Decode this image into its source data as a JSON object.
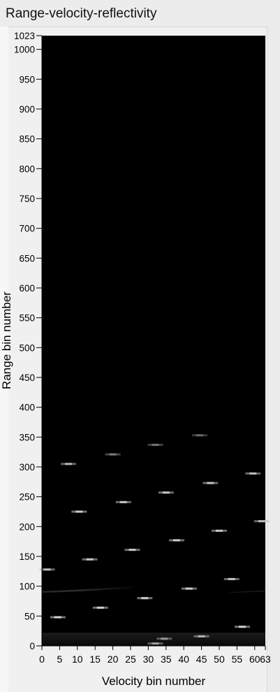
{
  "panel": {
    "title": "Range-velocity-reflectivity"
  },
  "chart_data": {
    "type": "heatmap",
    "title": "",
    "xlabel": "Velocity bin number",
    "ylabel": "Range bin number",
    "xlim": [
      0,
      63
    ],
    "ylim": [
      0,
      1023
    ],
    "x_ticks": [
      0,
      5,
      10,
      15,
      20,
      25,
      30,
      35,
      40,
      45,
      50,
      55,
      60,
      63
    ],
    "y_ticks": [
      0,
      50,
      100,
      150,
      200,
      250,
      300,
      350,
      400,
      450,
      500,
      550,
      600,
      650,
      700,
      750,
      800,
      850,
      900,
      950,
      1000,
      1023
    ],
    "colormap": [
      "#000000",
      "#ffffff"
    ],
    "background_color": "#000000",
    "grid": false,
    "targets": [
      {
        "velocity_bin": 4.5,
        "range_bin": 48,
        "intensity": 0.85
      },
      {
        "velocity_bin": 16.5,
        "range_bin": 64,
        "intensity": 0.8
      },
      {
        "velocity_bin": 29,
        "range_bin": 80,
        "intensity": 0.8
      },
      {
        "velocity_bin": 41.5,
        "range_bin": 96,
        "intensity": 0.8
      },
      {
        "velocity_bin": 53.5,
        "range_bin": 112,
        "intensity": 0.75
      },
      {
        "velocity_bin": 1.5,
        "range_bin": 128,
        "intensity": 0.7
      },
      {
        "velocity_bin": 13.5,
        "range_bin": 145,
        "intensity": 0.75
      },
      {
        "velocity_bin": 25.5,
        "range_bin": 161,
        "intensity": 0.75
      },
      {
        "velocity_bin": 38,
        "range_bin": 177,
        "intensity": 0.8
      },
      {
        "velocity_bin": 50,
        "range_bin": 193,
        "intensity": 0.75
      },
      {
        "velocity_bin": 62,
        "range_bin": 209,
        "intensity": 0.7
      },
      {
        "velocity_bin": 10.5,
        "range_bin": 225,
        "intensity": 0.8
      },
      {
        "velocity_bin": 23,
        "range_bin": 241,
        "intensity": 0.75
      },
      {
        "velocity_bin": 35,
        "range_bin": 257,
        "intensity": 0.75
      },
      {
        "velocity_bin": 47.5,
        "range_bin": 273,
        "intensity": 0.75
      },
      {
        "velocity_bin": 59.5,
        "range_bin": 289,
        "intensity": 0.7
      },
      {
        "velocity_bin": 7.5,
        "range_bin": 305,
        "intensity": 0.65
      },
      {
        "velocity_bin": 20,
        "range_bin": 321,
        "intensity": 0.35
      },
      {
        "velocity_bin": 32,
        "range_bin": 337,
        "intensity": 0.3
      },
      {
        "velocity_bin": 44.5,
        "range_bin": 353,
        "intensity": 0.25
      },
      {
        "velocity_bin": 45,
        "range_bin": 16,
        "intensity": 0.65
      },
      {
        "velocity_bin": 56.5,
        "range_bin": 32,
        "intensity": 0.8
      },
      {
        "velocity_bin": 34.5,
        "range_bin": 12,
        "intensity": 0.5
      },
      {
        "velocity_bin": 32,
        "range_bin": 4,
        "intensity": 0.55
      }
    ]
  }
}
